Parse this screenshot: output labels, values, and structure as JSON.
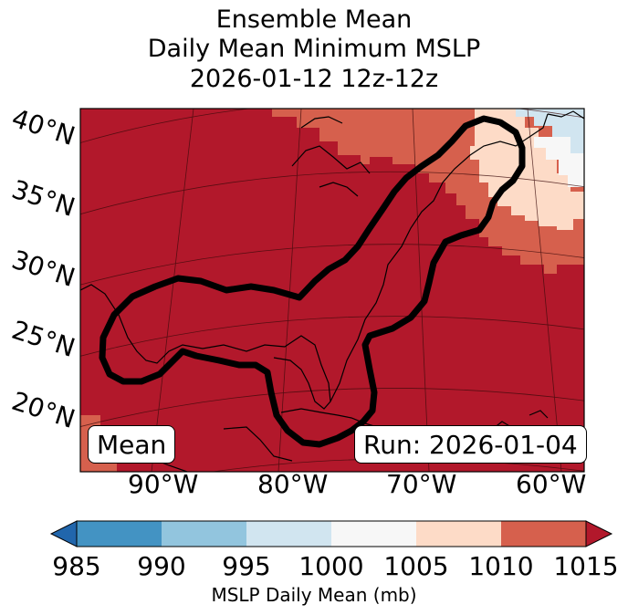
{
  "title": {
    "line1": "Ensemble Mean",
    "line2": "Daily Mean Minimum MSLP",
    "line3": "2026-01-12 12z-12z"
  },
  "map": {
    "lat_labels": [
      "40°N",
      "35°N",
      "30°N",
      "25°N",
      "20°N"
    ],
    "lon_labels": [
      "90°W",
      "80°W",
      "70°W",
      "60°W"
    ],
    "mean_label": "Mean",
    "run_label": "Run: 2026-01-04",
    "features": [
      "coastlines",
      "graticule",
      "black-contour"
    ]
  },
  "colorbar": {
    "ticks": [
      "985",
      "990",
      "995",
      "1000",
      "1005",
      "1010",
      "1015"
    ],
    "label": "MSLP Daily Mean (mb)",
    "colors": [
      "#4393c3",
      "#92c5de",
      "#d1e5f0",
      "#f7f7f7",
      "#fddbc7",
      "#d6604d",
      "#b2182b"
    ],
    "under_color": "#2166ac",
    "over_color": "#b2182b"
  },
  "chart_data": {
    "type": "heatmap",
    "variable": "MSLP Daily Mean",
    "units": "mb",
    "levels": [
      985,
      990,
      995,
      1000,
      1005,
      1010,
      1015
    ],
    "extend": "both",
    "region": {
      "lat_range": [
        15,
        40
      ],
      "lon_range": [
        -97,
        -60
      ]
    },
    "dominant_value_range": [
      1010,
      1015
    ]
  }
}
